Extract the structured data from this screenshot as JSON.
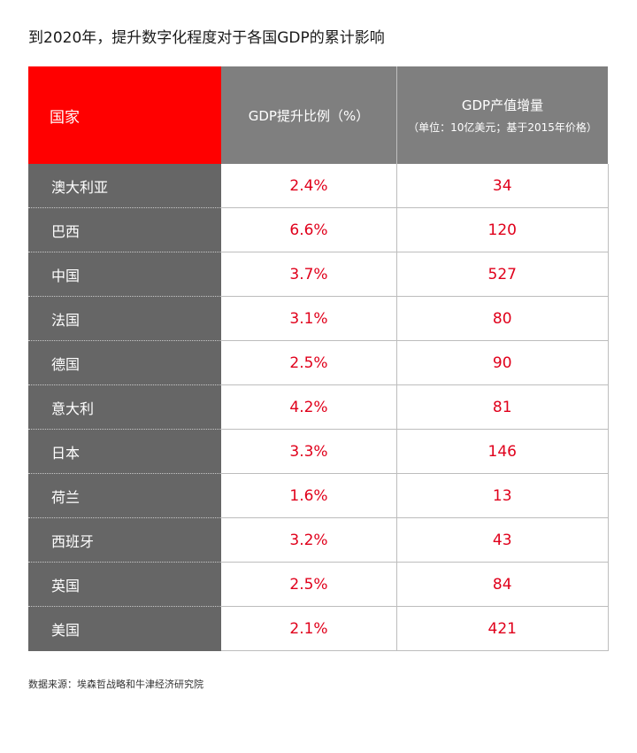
{
  "title": "到2020年，提升数字化程度对于各国GDP的累计影响",
  "table": {
    "headers": {
      "country": "国家",
      "gdp_ratio": "GDP提升比例（%）",
      "gdp_increase": "GDP产值增量",
      "gdp_increase_sub": "（单位：10亿美元；基于2015年价格）"
    },
    "rows": [
      {
        "country": "澳大利亚",
        "ratio": "2.4%",
        "increase": "34"
      },
      {
        "country": "巴西",
        "ratio": "6.6%",
        "increase": "120"
      },
      {
        "country": "中国",
        "ratio": "3.7%",
        "increase": "527"
      },
      {
        "country": "法国",
        "ratio": "3.1%",
        "increase": "80"
      },
      {
        "country": "德国",
        "ratio": "2.5%",
        "increase": "90"
      },
      {
        "country": "意大利",
        "ratio": "4.2%",
        "increase": "81"
      },
      {
        "country": "日本",
        "ratio": "3.3%",
        "increase": "146"
      },
      {
        "country": "荷兰",
        "ratio": "1.6%",
        "increase": "13"
      },
      {
        "country": "西班牙",
        "ratio": "3.2%",
        "increase": "43"
      },
      {
        "country": "英国",
        "ratio": "2.5%",
        "increase": "84"
      },
      {
        "country": "美国",
        "ratio": "2.1%",
        "increase": "421"
      }
    ]
  },
  "source": "数据来源：埃森哲战略和牛津经济研究院",
  "colors": {
    "header_accent": "#ff0000",
    "header_grey": "#7f7f7f",
    "country_cell": "#666666",
    "value_text": "#e0001b"
  }
}
